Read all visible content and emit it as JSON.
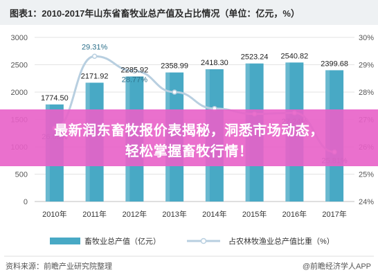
{
  "header": {
    "title": "图表1：2010-2017年山东省畜牧业总产值及占比情况（单位：亿元，%）"
  },
  "banner": {
    "line1": "最新润东畜牧报价表揭秘，洞悉市场动态，",
    "line2": "轻松掌握畜牧行情！"
  },
  "footer": {
    "source": "资料来源：前瞻产业研究院整理",
    "brand": "@前瞻经济学人APP"
  },
  "colors": {
    "bar": "#48a9c5",
    "line": "#b8cfe0",
    "grid": "#e3e3e3",
    "axis_text": "#555555",
    "banner": "#e860c8"
  },
  "chart_data": {
    "type": "bar",
    "categories": [
      "2010年",
      "2011年",
      "2012年",
      "2013年",
      "2014年",
      "2015年",
      "2016年",
      "2017年"
    ],
    "series": [
      {
        "name": "畜牧业总产值（亿元）",
        "type": "bar",
        "axis": "left",
        "values": [
          1774.5,
          2171.92,
          2285.92,
          2358.99,
          2418.3,
          2523.24,
          2540.82,
          2399.68
        ],
        "labels": [
          "1774.50",
          "2171.92",
          "2285.92",
          "2358.99",
          "2418.30",
          "2523.24",
          "2540.82",
          "2399.68"
        ]
      },
      {
        "name": "占农林牧渔业总产值比重（%）",
        "type": "line",
        "axis": "right",
        "values": [
          26.68,
          29.31,
          28.77,
          28.0,
          27.4,
          27.2,
          27.24,
          25.81
        ],
        "labels": [
          "26.68%",
          "29.31%",
          "28.77%",
          "",
          "",
          "",
          "27.24%",
          "25.81%"
        ]
      }
    ],
    "y_left": {
      "ylim": [
        0,
        3000
      ],
      "ticks": [
        0,
        500,
        1000,
        1500,
        2000,
        2500,
        3000
      ],
      "tick_labels": [
        "0",
        "500",
        "1000",
        "1500",
        "2000",
        "2500",
        "3000"
      ]
    },
    "y_right": {
      "ylim": [
        24,
        30
      ],
      "ticks": [
        24,
        25,
        26,
        27,
        28,
        29,
        30
      ],
      "tick_labels": [
        "24%",
        "25%",
        "26%",
        "27%",
        "28%",
        "29%",
        "30%"
      ]
    },
    "grid": true,
    "legend_placement": "bottom"
  }
}
